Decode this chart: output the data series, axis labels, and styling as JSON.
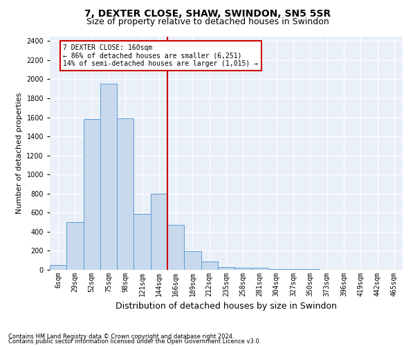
{
  "title": "7, DEXTER CLOSE, SHAW, SWINDON, SN5 5SR",
  "subtitle": "Size of property relative to detached houses in Swindon",
  "xlabel": "Distribution of detached houses by size in Swindon",
  "ylabel": "Number of detached properties",
  "bin_labels": [
    "6sqm",
    "29sqm",
    "52sqm",
    "75sqm",
    "98sqm",
    "121sqm",
    "144sqm",
    "166sqm",
    "189sqm",
    "212sqm",
    "235sqm",
    "258sqm",
    "281sqm",
    "304sqm",
    "327sqm",
    "350sqm",
    "373sqm",
    "396sqm",
    "419sqm",
    "442sqm",
    "465sqm"
  ],
  "bar_values": [
    50,
    500,
    1580,
    1950,
    1590,
    590,
    800,
    475,
    195,
    85,
    30,
    25,
    20,
    10,
    8,
    5,
    3,
    2,
    2,
    2,
    1
  ],
  "bar_color": "#c9d9ed",
  "bar_edge_color": "#5b9bd5",
  "vline_color": "#cc0000",
  "vline_pos": 6.5,
  "annotation_text": "7 DEXTER CLOSE: 160sqm\n← 86% of detached houses are smaller (6,251)\n14% of semi-detached houses are larger (1,015) →",
  "annotation_box_color": "#ffffff",
  "annotation_box_edge": "#cc0000",
  "ylim": [
    0,
    2450
  ],
  "yticks": [
    0,
    200,
    400,
    600,
    800,
    1000,
    1200,
    1400,
    1600,
    1800,
    2000,
    2200,
    2400
  ],
  "footer1": "Contains HM Land Registry data © Crown copyright and database right 2024.",
  "footer2": "Contains public sector information licensed under the Open Government Licence v3.0.",
  "plot_bg_color": "#eaf0f8",
  "title_fontsize": 10,
  "subtitle_fontsize": 9,
  "xlabel_fontsize": 9,
  "ylabel_fontsize": 8,
  "tick_fontsize": 7,
  "ann_fontsize": 7,
  "footer_fontsize": 6
}
